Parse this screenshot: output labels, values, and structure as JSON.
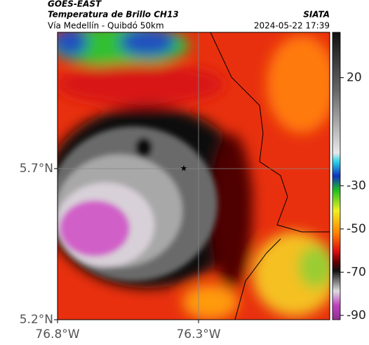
{
  "header": {
    "title": "GOES-EAST",
    "subtitle": "Temperatura de Brillo CH13",
    "region": "Vía Medellín - Quibdó 50km",
    "agency": "SIATA",
    "timestamp": "2024-05-22 17:39"
  },
  "map": {
    "latlim": [
      5.2,
      6.151
    ],
    "lonlim": [
      -76.8,
      -75.835
    ],
    "latticks": [
      {
        "value": 5.7,
        "label": "5.7°N"
      },
      {
        "value": 5.2,
        "label": "5.2°N"
      }
    ],
    "lonticks": [
      {
        "value": -76.8,
        "label": "76.8°W"
      },
      {
        "value": -76.3,
        "label": "76.3°W"
      }
    ]
  },
  "colorbar": {
    "lim": [
      -92,
      41
    ],
    "ticks": [
      20,
      -30,
      -50,
      -70,
      -90
    ]
  }
}
